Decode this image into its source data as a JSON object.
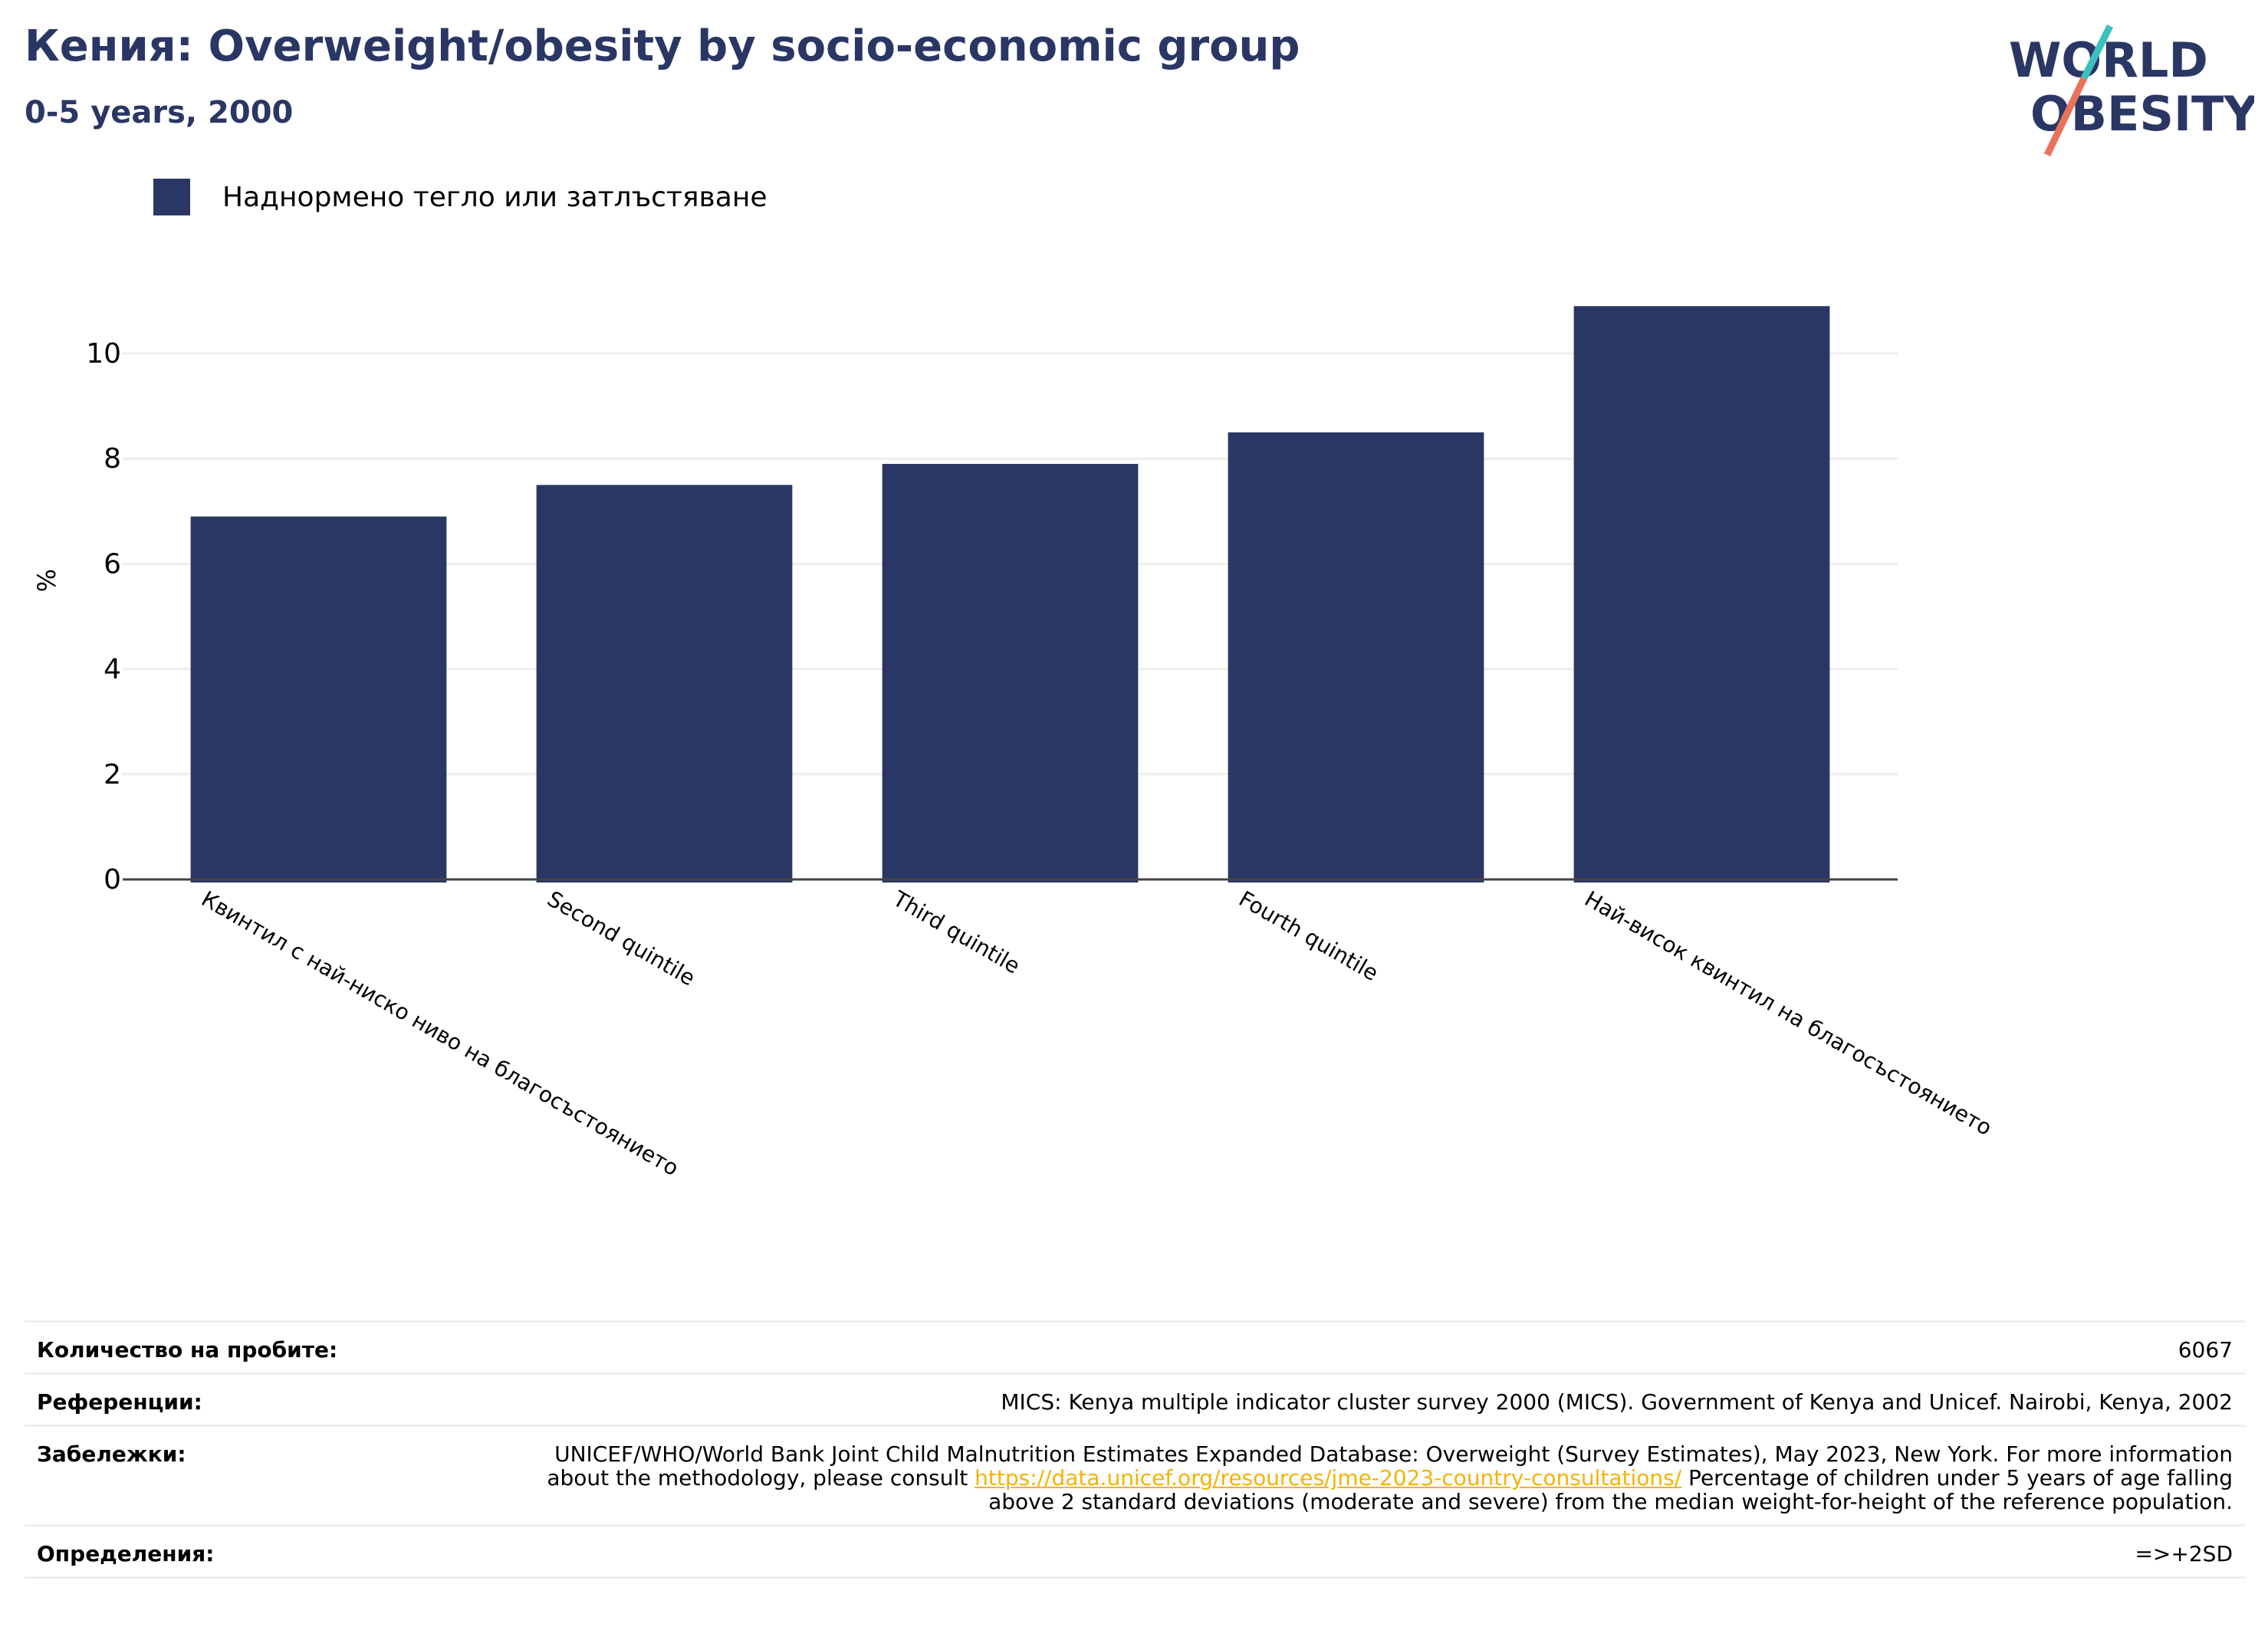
{
  "header": {
    "title": "Кения: Overweight/obesity by socio-economic group",
    "subtitle": "0-5 years, 2000"
  },
  "logo": {
    "line1": "WORLD",
    "line2": "OBESITY"
  },
  "legend": {
    "label": "Наднормено тегло или затлъстяване",
    "color": "#2a3764"
  },
  "chart_data": {
    "type": "bar",
    "title": "Кения: Overweight/obesity by socio-economic group",
    "subtitle": "0-5 years, 2000",
    "categories": [
      "Квинтил с най-ниско ниво на благосъстоянието",
      "Second quintile",
      "Third quintile",
      "Fourth quintile",
      "Най-висок квинтил на благосъстоянието"
    ],
    "series": [
      {
        "name": "Наднормено тегло или затлъстяване",
        "values": [
          6.9,
          7.5,
          7.9,
          8.5,
          10.9
        ],
        "color": "#2a3764"
      }
    ],
    "xlabel": "",
    "ylabel": "%",
    "ylim": [
      0,
      11.5
    ],
    "yticks": [
      0,
      2,
      4,
      6,
      8,
      10
    ],
    "grid": true,
    "legend_position": "top-left"
  },
  "footer": {
    "sample_label": "Количество на пробите:",
    "sample_value": "6067",
    "references_label": "Референции:",
    "references_value": "MICS: Kenya multiple indicator cluster survey 2000 (MICS). Government of Kenya and Unicef. Nairobi, Kenya, 2002",
    "notes_label": "Забележки:",
    "notes_before": "UNICEF/WHO/World Bank Joint Child Malnutrition Estimates Expanded Database: Overweight (Survey Estimates), May 2023, New York. For more information about the methodology, please consult ",
    "notes_link": "https://data.unicef.org/resources/jme-2023-country-consultations/",
    "notes_after": " Percentage of children under 5 years of age falling above 2 standard deviations (moderate and severe) from the median weight-for-height of the reference population.",
    "definitions_label": "Определения:",
    "definitions_value": "=>+2SD"
  }
}
